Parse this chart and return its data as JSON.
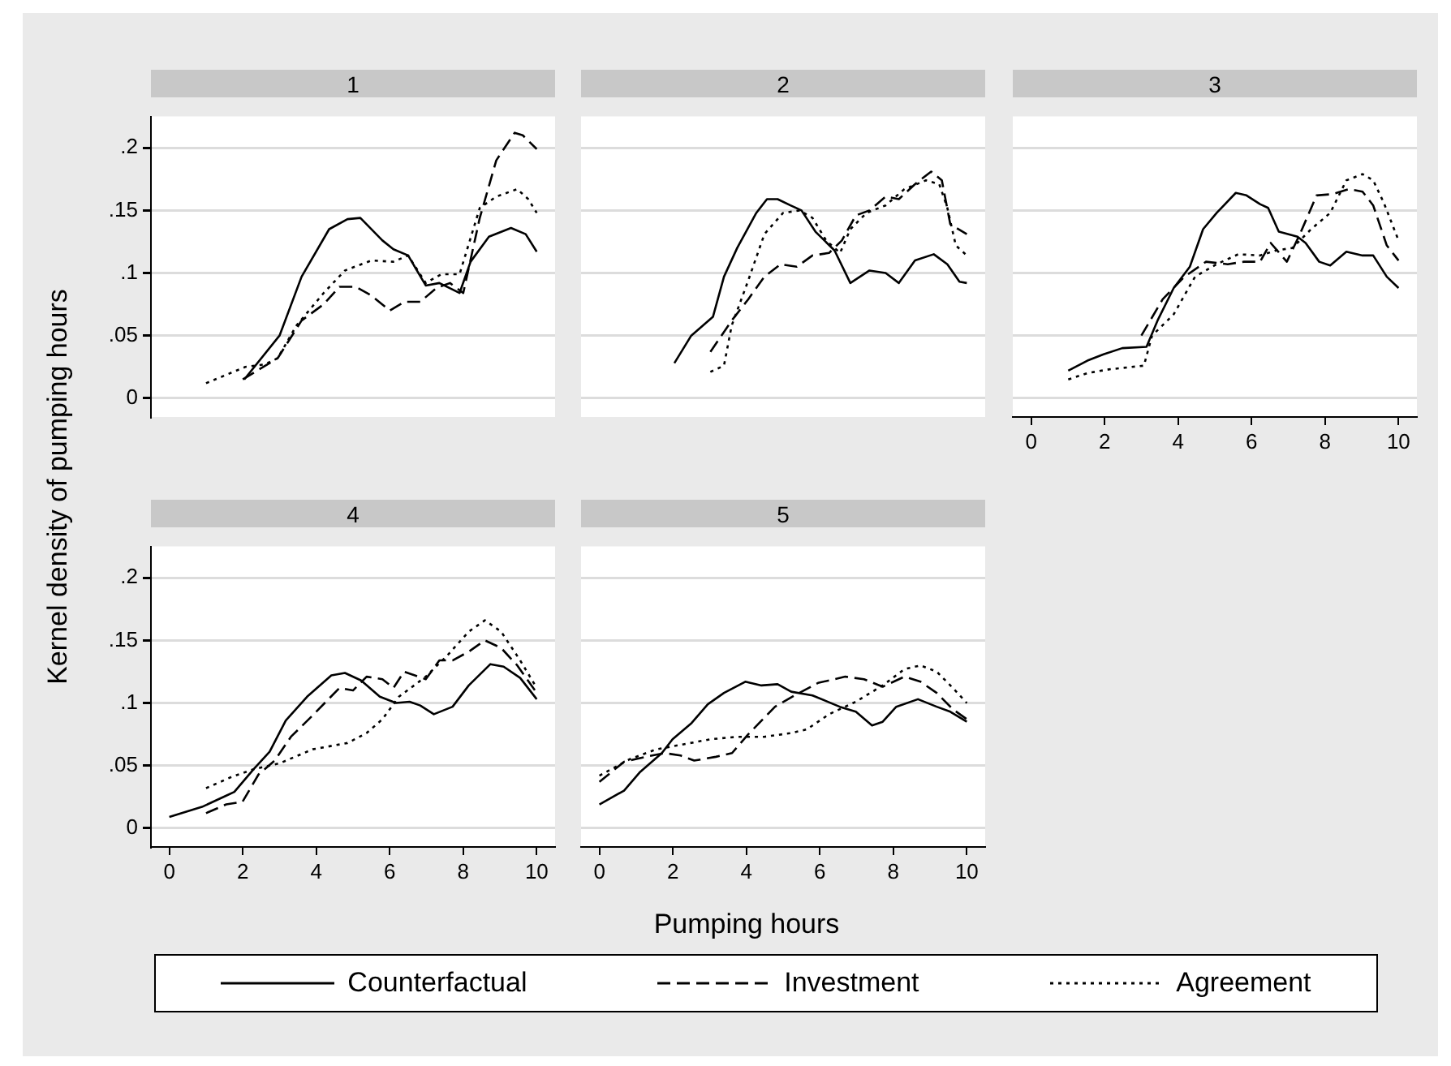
{
  "chart_data": [
    {
      "type": "line",
      "title": "1",
      "legend": "bottom",
      "xlim": [
        -0.5,
        10.5
      ],
      "xticks": [
        0,
        2,
        4,
        6,
        8,
        10
      ],
      "ylim": [
        -0.015,
        0.225
      ],
      "yticks": [
        0,
        {
          "value": 0.05,
          "label": ".05"
        },
        {
          "value": 0.1,
          "label": ".1"
        },
        {
          "value": 0.15,
          "label": ".15"
        },
        {
          "value": 0.2,
          "label": ".2"
        }
      ],
      "grid": "y",
      "marker": "none",
      "tick_labels": "y",
      "series": [
        {
          "name": "Counterfactual",
          "color": "#000000",
          "line_style": "solid",
          "x": [
            2.04,
            3.0,
            3.6,
            4.35,
            4.85,
            5.2,
            5.8,
            6.1,
            6.5,
            6.98,
            7.35,
            7.9,
            8.2,
            8.7,
            9.3,
            9.7,
            10
          ],
          "values": [
            0.015,
            0.05,
            0.097,
            0.135,
            0.143,
            0.144,
            0.126,
            0.119,
            0.114,
            0.09,
            0.092,
            0.084,
            0.109,
            0.129,
            0.136,
            0.131,
            0.117
          ]
        },
        {
          "name": "Investment",
          "color": "#000000",
          "line_style": "dashed",
          "x": [
            2.0,
            2.95,
            3.6,
            4.2,
            4.63,
            5.07,
            5.5,
            6.0,
            6.4,
            6.83,
            7.27,
            7.64,
            8.0,
            8.45,
            8.9,
            9.4,
            9.62,
            10
          ],
          "values": [
            0.015,
            0.032,
            0.062,
            0.075,
            0.089,
            0.089,
            0.082,
            0.07,
            0.077,
            0.077,
            0.088,
            0.092,
            0.084,
            0.144,
            0.19,
            0.212,
            0.21,
            0.199
          ]
        },
        {
          "name": "Agreement",
          "color": "#000000",
          "line_style": "dotted",
          "x": [
            1.0,
            2.07,
            2.6,
            2.95,
            3.46,
            4.2,
            4.78,
            5.5,
            6.1,
            6.5,
            6.98,
            7.4,
            7.9,
            8.45,
            8.9,
            9.47,
            9.77,
            10
          ],
          "values": [
            0.012,
            0.025,
            0.027,
            0.032,
            0.058,
            0.084,
            0.102,
            0.11,
            0.109,
            0.114,
            0.092,
            0.099,
            0.099,
            0.152,
            0.161,
            0.167,
            0.159,
            0.148
          ]
        }
      ]
    },
    {
      "type": "line",
      "title": "2",
      "xlim": [
        -0.5,
        10.5
      ],
      "xticks": [
        0,
        2,
        4,
        6,
        8,
        10
      ],
      "ylim": [
        -0.015,
        0.225
      ],
      "yticks": [
        0,
        0.05,
        0.1,
        0.15,
        0.2
      ],
      "grid": "y",
      "marker": "none",
      "tick_labels": false,
      "series": [
        {
          "color": "#000000",
          "line_style": "solid",
          "x": [
            2.04,
            2.5,
            3.09,
            3.39,
            3.75,
            4.27,
            4.56,
            4.85,
            5.2,
            5.5,
            5.88,
            6.4,
            6.83,
            7.35,
            7.79,
            8.15,
            8.59,
            9.1,
            9.47,
            9.8,
            10
          ],
          "values": [
            0.028,
            0.05,
            0.065,
            0.097,
            0.12,
            0.148,
            0.159,
            0.159,
            0.154,
            0.15,
            0.133,
            0.118,
            0.092,
            0.102,
            0.1,
            0.092,
            0.11,
            0.115,
            0.107,
            0.093,
            0.092
          ]
        },
        {
          "color": "#000000",
          "line_style": "dashed",
          "x": [
            3.02,
            3.6,
            4.05,
            4.49,
            4.93,
            5.37,
            5.8,
            6.25,
            6.6,
            6.98,
            7.35,
            7.79,
            8.15,
            8.59,
            9.03,
            9.32,
            9.55,
            10
          ],
          "values": [
            0.037,
            0.062,
            0.079,
            0.097,
            0.107,
            0.105,
            0.114,
            0.116,
            0.126,
            0.146,
            0.15,
            0.161,
            0.159,
            0.171,
            0.181,
            0.174,
            0.139,
            0.131
          ]
        },
        {
          "color": "#000000",
          "line_style": "dotted",
          "x": [
            3.02,
            3.39,
            3.6,
            4.05,
            4.49,
            5.0,
            5.45,
            5.8,
            6.17,
            6.55,
            6.83,
            7.27,
            7.79,
            8.3,
            8.89,
            9.25,
            9.47,
            9.7,
            10
          ],
          "values": [
            0.021,
            0.026,
            0.058,
            0.094,
            0.131,
            0.148,
            0.15,
            0.144,
            0.126,
            0.116,
            0.135,
            0.148,
            0.154,
            0.167,
            0.174,
            0.171,
            0.152,
            0.122,
            0.114
          ]
        }
      ]
    },
    {
      "type": "line",
      "title": "3",
      "xlim": [
        -0.5,
        10.5
      ],
      "xticks": [
        0,
        2,
        4,
        6,
        8,
        10
      ],
      "ylim": [
        -0.015,
        0.225
      ],
      "yticks": [
        0,
        0.05,
        0.1,
        0.15,
        0.2
      ],
      "grid": "y",
      "marker": "none",
      "tick_labels": "x",
      "series": [
        {
          "color": "#000000",
          "line_style": "solid",
          "x": [
            1.01,
            1.53,
            1.97,
            2.48,
            3.14,
            3.44,
            3.88,
            4.32,
            4.68,
            5.05,
            5.57,
            5.86,
            6.23,
            6.45,
            6.74,
            7.25,
            7.47,
            7.84,
            8.14,
            8.58,
            9.02,
            9.31,
            9.68,
            10
          ],
          "values": [
            0.022,
            0.03,
            0.035,
            0.04,
            0.041,
            0.062,
            0.088,
            0.105,
            0.135,
            0.148,
            0.164,
            0.162,
            0.155,
            0.152,
            0.133,
            0.129,
            0.124,
            0.109,
            0.106,
            0.117,
            0.114,
            0.114,
            0.097,
            0.088
          ]
        },
        {
          "color": "#000000",
          "line_style": "dashed",
          "x": [
            3.0,
            3.58,
            4.17,
            4.76,
            5.35,
            5.79,
            6.23,
            6.52,
            6.96,
            7.33,
            7.77,
            8.21,
            8.65,
            9.02,
            9.31,
            9.68,
            10
          ],
          "values": [
            0.05,
            0.079,
            0.097,
            0.109,
            0.107,
            0.109,
            0.109,
            0.124,
            0.109,
            0.132,
            0.162,
            0.163,
            0.167,
            0.165,
            0.154,
            0.122,
            0.11
          ]
        },
        {
          "color": "#000000",
          "line_style": "dotted",
          "x": [
            1.01,
            1.53,
            2.11,
            3.07,
            3.29,
            3.88,
            4.46,
            5.05,
            5.64,
            6.23,
            6.67,
            7.11,
            7.62,
            8.14,
            8.58,
            9.02,
            9.31,
            9.6,
            10
          ],
          "values": [
            0.015,
            0.02,
            0.023,
            0.026,
            0.05,
            0.067,
            0.097,
            0.107,
            0.115,
            0.114,
            0.118,
            0.12,
            0.135,
            0.148,
            0.174,
            0.179,
            0.174,
            0.156,
            0.126
          ]
        }
      ]
    },
    {
      "type": "line",
      "title": "4",
      "xlabel": "Pumping hours",
      "ylabel": "Kernel density of pumping hours",
      "xlim": [
        -0.5,
        10.5
      ],
      "xticks": [
        0,
        2,
        4,
        6,
        8,
        10
      ],
      "ylim": [
        -0.015,
        0.225
      ],
      "yticks": [
        0,
        {
          "value": 0.05,
          "label": ".05"
        },
        {
          "value": 0.1,
          "label": ".1"
        },
        {
          "value": 0.15,
          "label": ".15"
        },
        {
          "value": 0.2,
          "label": ".2"
        }
      ],
      "grid": "y",
      "marker": "none",
      "series": [
        {
          "color": "#000000",
          "line_style": "solid",
          "x": [
            0,
            0.89,
            1.55,
            1.77,
            2.29,
            2.73,
            3.17,
            3.75,
            4.41,
            4.78,
            5.22,
            5.73,
            6.17,
            6.54,
            6.83,
            7.2,
            7.71,
            8.15,
            8.74,
            9.1,
            9.55,
            10
          ],
          "values": [
            0.009,
            0.017,
            0.026,
            0.029,
            0.047,
            0.061,
            0.086,
            0.105,
            0.122,
            0.124,
            0.118,
            0.105,
            0.1,
            0.101,
            0.098,
            0.091,
            0.097,
            0.114,
            0.131,
            0.129,
            0.12,
            0.103
          ]
        },
        {
          "color": "#000000",
          "line_style": "dashed",
          "x": [
            1.0,
            1.55,
            1.99,
            2.43,
            2.87,
            3.31,
            3.9,
            4.63,
            5.0,
            5.37,
            5.8,
            6.1,
            6.39,
            6.98,
            7.35,
            7.71,
            8.15,
            8.59,
            9.03,
            9.47,
            10
          ],
          "values": [
            0.012,
            0.019,
            0.021,
            0.043,
            0.054,
            0.073,
            0.09,
            0.112,
            0.11,
            0.121,
            0.119,
            0.112,
            0.125,
            0.119,
            0.134,
            0.134,
            0.141,
            0.15,
            0.144,
            0.13,
            0.108
          ]
        },
        {
          "color": "#000000",
          "line_style": "dotted",
          "x": [
            1.0,
            1.7,
            2.29,
            3.02,
            3.9,
            4.85,
            5.37,
            5.8,
            6.25,
            6.98,
            7.57,
            8.15,
            8.59,
            9.03,
            9.55,
            10
          ],
          "values": [
            0.032,
            0.041,
            0.047,
            0.052,
            0.063,
            0.068,
            0.076,
            0.087,
            0.105,
            0.121,
            0.138,
            0.157,
            0.166,
            0.157,
            0.134,
            0.112
          ]
        }
      ]
    },
    {
      "type": "line",
      "title": "5",
      "xlim": [
        -0.5,
        10.5
      ],
      "xticks": [
        0,
        2,
        4,
        6,
        8,
        10
      ],
      "ylim": [
        -0.015,
        0.225
      ],
      "yticks": [
        0,
        0.05,
        0.1,
        0.15,
        0.2
      ],
      "grid": "y",
      "marker": "none",
      "tick_labels": "x",
      "series": [
        {
          "color": "#000000",
          "line_style": "solid",
          "x": [
            0,
            0.67,
            1.11,
            1.7,
            1.99,
            2.51,
            2.95,
            3.39,
            3.97,
            4.41,
            4.85,
            5.22,
            5.8,
            6.54,
            6.98,
            7.42,
            7.71,
            8.08,
            8.67,
            9.18,
            9.55,
            10
          ],
          "values": [
            0.019,
            0.03,
            0.045,
            0.06,
            0.071,
            0.084,
            0.099,
            0.108,
            0.117,
            0.114,
            0.115,
            0.109,
            0.106,
            0.097,
            0.093,
            0.082,
            0.085,
            0.097,
            0.103,
            0.097,
            0.093,
            0.085
          ]
        },
        {
          "color": "#000000",
          "line_style": "dashed",
          "x": [
            0,
            0.67,
            1.26,
            1.77,
            2.21,
            2.58,
            3.17,
            3.61,
            4.05,
            4.78,
            5.37,
            5.95,
            6.69,
            7.2,
            7.71,
            8.3,
            8.74,
            9.18,
            9.62,
            10
          ],
          "values": [
            0.037,
            0.053,
            0.057,
            0.06,
            0.058,
            0.054,
            0.057,
            0.06,
            0.075,
            0.097,
            0.107,
            0.116,
            0.121,
            0.119,
            0.113,
            0.121,
            0.117,
            0.108,
            0.095,
            0.087
          ]
        },
        {
          "color": "#000000",
          "line_style": "dotted",
          "x": [
            0,
            0.82,
            1.55,
            2.29,
            3.02,
            3.75,
            4.49,
            5.22,
            5.65,
            6.25,
            6.98,
            7.71,
            8.3,
            8.74,
            9.18,
            9.62,
            10
          ],
          "values": [
            0.042,
            0.055,
            0.063,
            0.067,
            0.071,
            0.073,
            0.073,
            0.076,
            0.079,
            0.091,
            0.101,
            0.114,
            0.127,
            0.13,
            0.125,
            0.112,
            0.1
          ]
        }
      ]
    }
  ]
}
